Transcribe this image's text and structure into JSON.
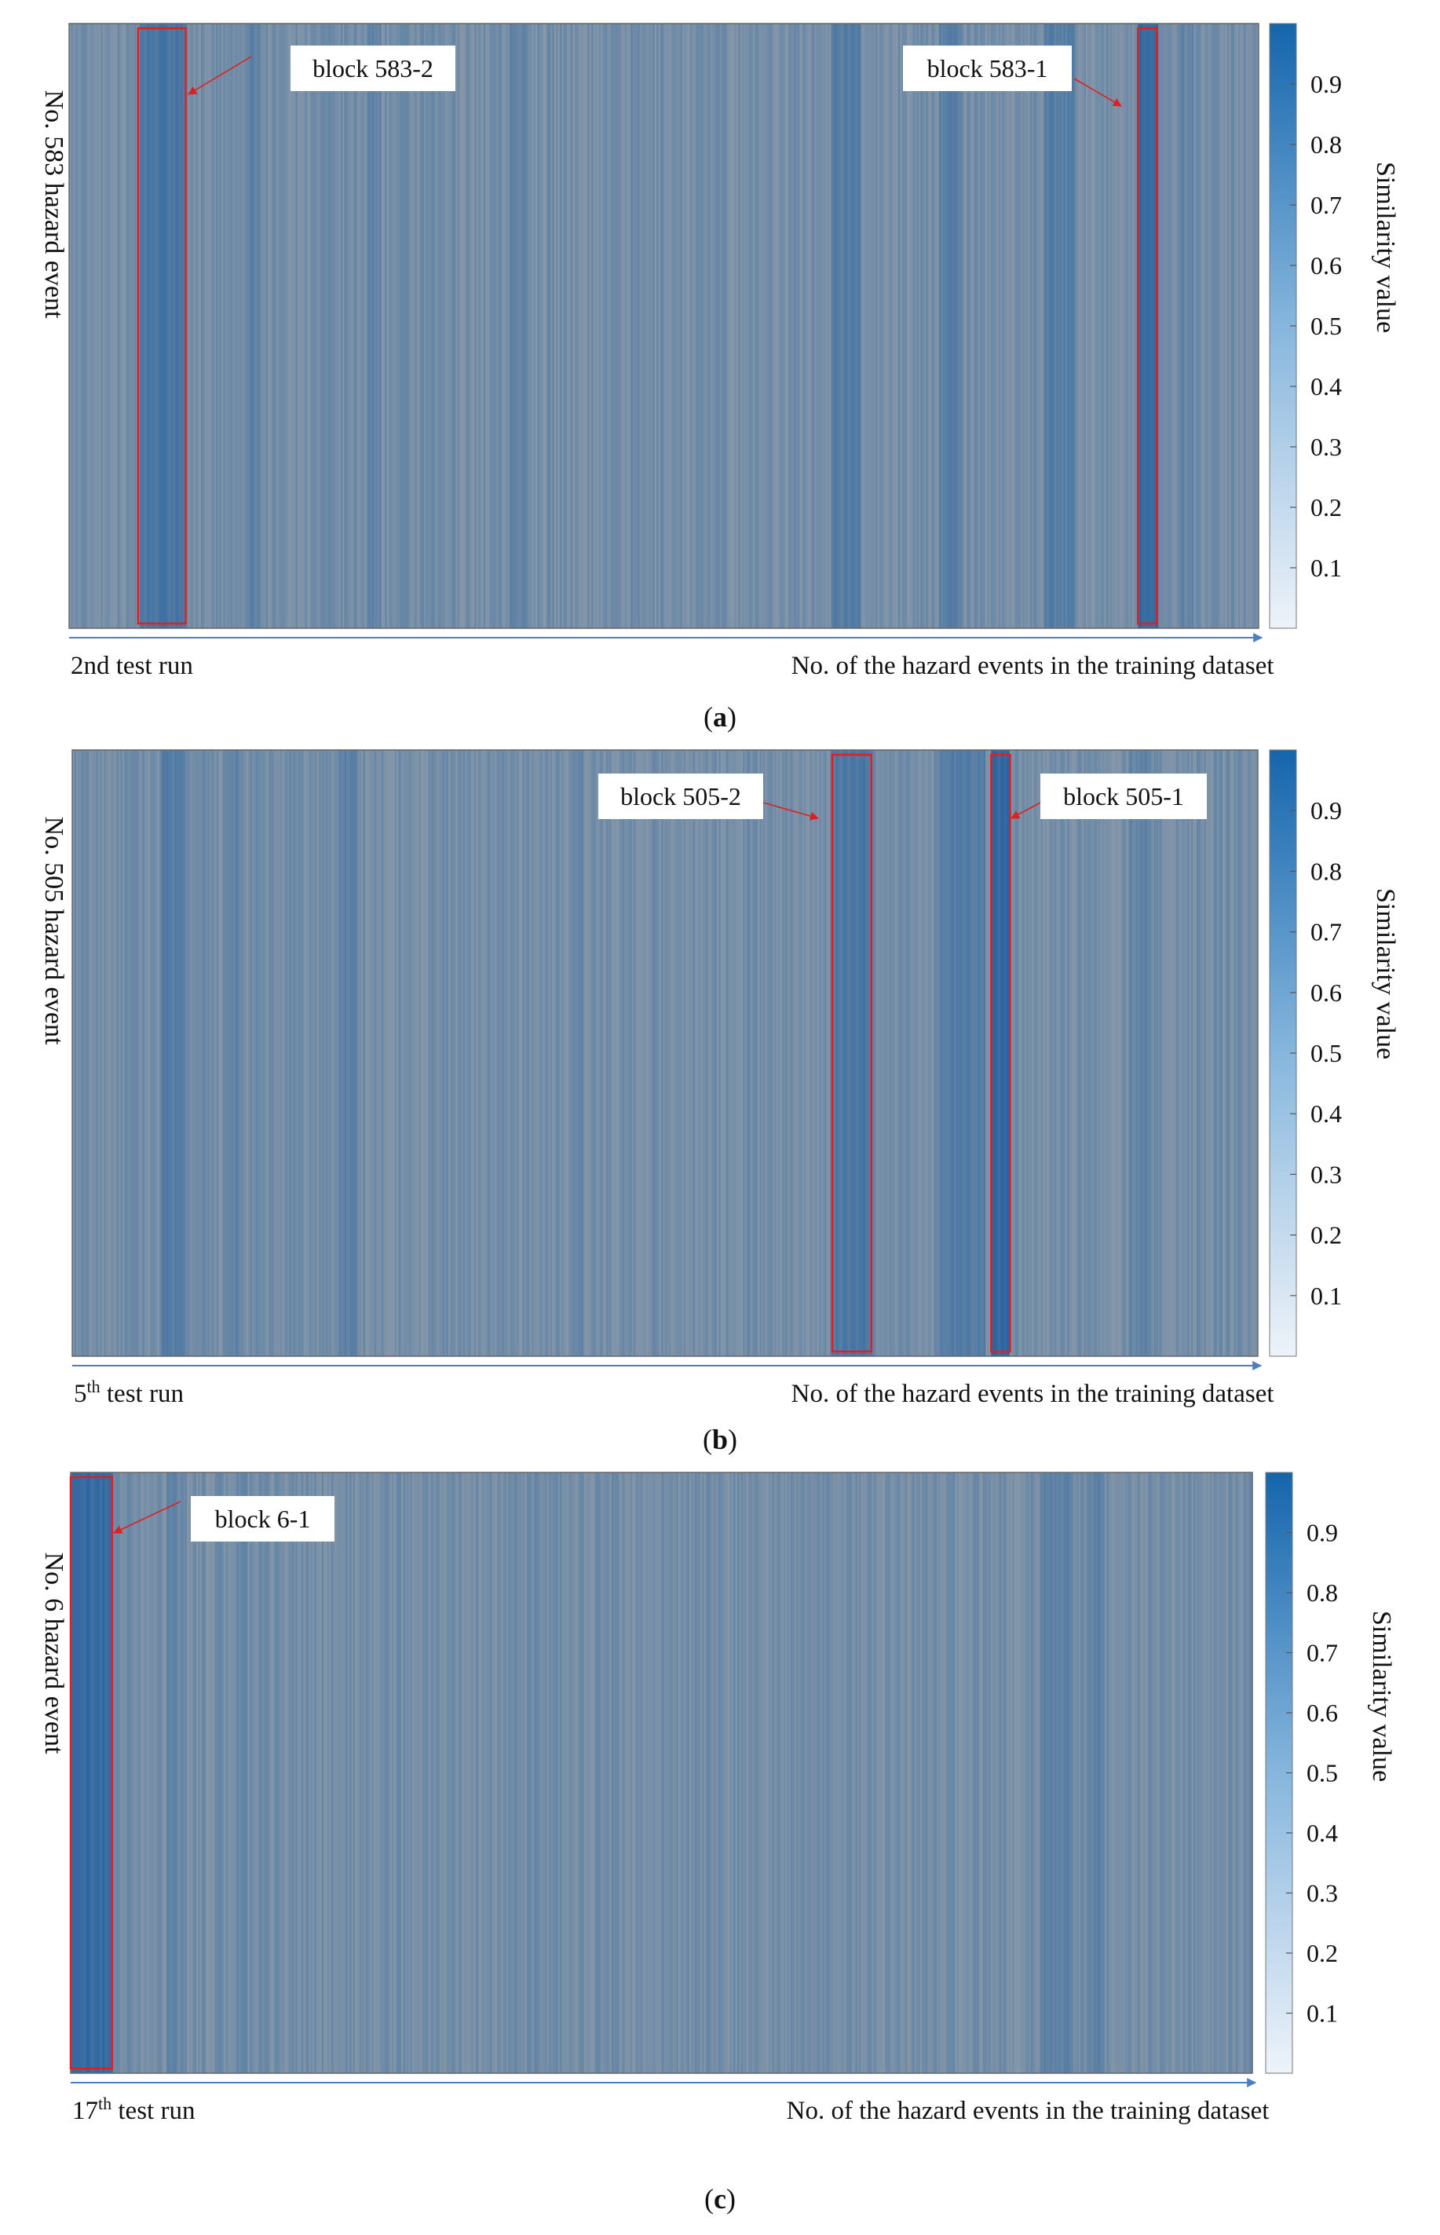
{
  "chart_data": [
    {
      "type": "heatmap",
      "panel_label": "a",
      "ylabel": "No. 583 hazard event",
      "run_label": {
        "main": "2nd test run",
        "sup": ""
      },
      "xlabel": "No. of the hazard events in the training dataset",
      "colorbar": {
        "label": "Similarity value",
        "range": [
          0,
          1
        ],
        "ticks": [
          0.1,
          0.2,
          0.3,
          0.4,
          0.5,
          0.6,
          0.7,
          0.8,
          0.9
        ]
      },
      "n_events": 640,
      "base_similarity": 0.48,
      "bands": [
        {
          "from": 0.058,
          "to": 0.098,
          "value": 0.72
        },
        {
          "from": 0.15,
          "to": 0.16,
          "value": 0.6
        },
        {
          "from": 0.25,
          "to": 0.262,
          "value": 0.58
        },
        {
          "from": 0.37,
          "to": 0.385,
          "value": 0.57
        },
        {
          "from": 0.64,
          "to": 0.665,
          "value": 0.66
        },
        {
          "from": 0.73,
          "to": 0.75,
          "value": 0.63
        },
        {
          "from": 0.82,
          "to": 0.845,
          "value": 0.64
        },
        {
          "from": 0.898,
          "to": 0.915,
          "value": 0.85
        },
        {
          "from": 0.93,
          "to": 0.945,
          "value": 0.58
        }
      ],
      "blocks": [
        {
          "label": "block 583-2",
          "from": 0.058,
          "to": 0.098
        },
        {
          "label": "block 583-1",
          "from": 0.8985,
          "to": 0.9145
        }
      ]
    },
    {
      "type": "heatmap",
      "panel_label": "b",
      "ylabel": "No. 505 hazard event",
      "run_label": {
        "main": "5",
        "sup": "th",
        "rest": " test run"
      },
      "xlabel": "No. of the hazard events in the training dataset",
      "colorbar": {
        "label": "Similarity value",
        "range": [
          0,
          1
        ],
        "ticks": [
          0.1,
          0.2,
          0.3,
          0.4,
          0.5,
          0.6,
          0.7,
          0.8,
          0.9
        ]
      },
      "n_events": 640,
      "base_similarity": 0.48,
      "bands": [
        {
          "from": 0.075,
          "to": 0.095,
          "value": 0.64
        },
        {
          "from": 0.13,
          "to": 0.14,
          "value": 0.58
        },
        {
          "from": 0.225,
          "to": 0.24,
          "value": 0.62
        },
        {
          "from": 0.42,
          "to": 0.43,
          "value": 0.55
        },
        {
          "from": 0.64,
          "to": 0.675,
          "value": 0.7
        },
        {
          "from": 0.73,
          "to": 0.77,
          "value": 0.66
        },
        {
          "from": 0.775,
          "to": 0.79,
          "value": 0.85
        },
        {
          "from": 0.89,
          "to": 0.91,
          "value": 0.58
        }
      ],
      "blocks": [
        {
          "label": "block 505-2",
          "from": 0.641,
          "to": 0.674
        },
        {
          "label": "block 505-1",
          "from": 0.775,
          "to": 0.791
        }
      ]
    },
    {
      "type": "heatmap",
      "panel_label": "c",
      "ylabel": "No. 6 hazard event",
      "run_label": {
        "main": "17",
        "sup": "th",
        "rest": " test run"
      },
      "xlabel": "No. of the hazard events in the training dataset",
      "colorbar": {
        "label": "Similarity value",
        "range": [
          0,
          1
        ],
        "ticks": [
          0.1,
          0.2,
          0.3,
          0.4,
          0.5,
          0.6,
          0.7,
          0.8,
          0.9
        ]
      },
      "n_events": 640,
      "base_similarity": 0.48,
      "bands": [
        {
          "from": 0.0,
          "to": 0.035,
          "value": 0.82
        },
        {
          "from": 0.08,
          "to": 0.09,
          "value": 0.6
        },
        {
          "from": 0.14,
          "to": 0.15,
          "value": 0.56
        },
        {
          "from": 0.82,
          "to": 0.845,
          "value": 0.62
        },
        {
          "from": 0.86,
          "to": 0.875,
          "value": 0.58
        }
      ],
      "blocks": [
        {
          "label": "block 6-1",
          "from": 0.0,
          "to": 0.035
        }
      ]
    }
  ]
}
